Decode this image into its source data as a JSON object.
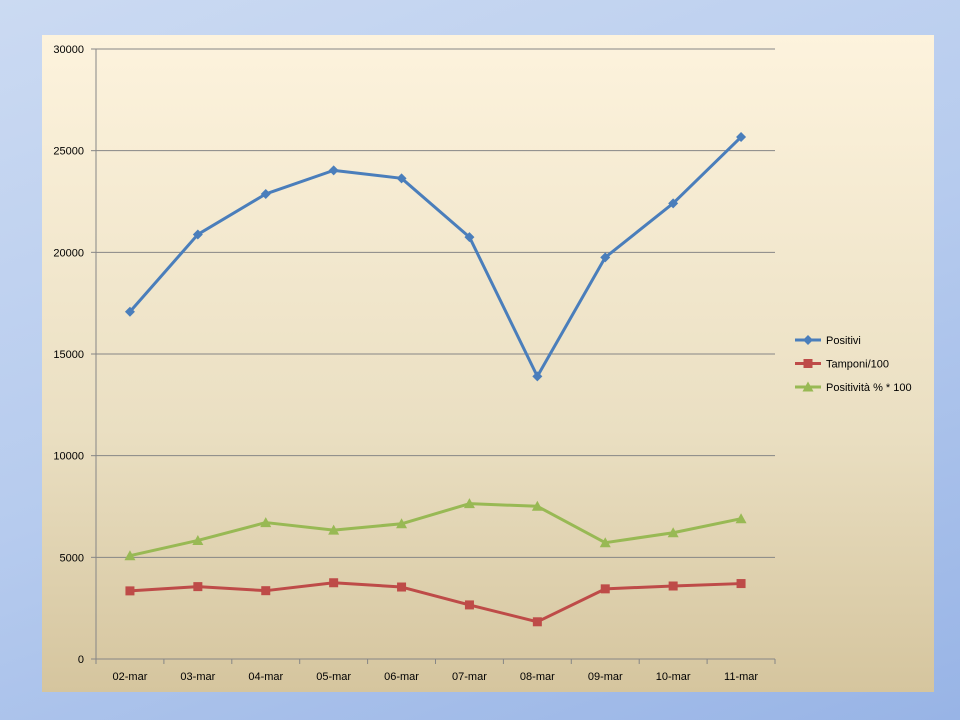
{
  "chart_data": {
    "type": "line",
    "categories": [
      "02-mar",
      "03-mar",
      "04-mar",
      "05-mar",
      "06-mar",
      "07-mar",
      "08-mar",
      "09-mar",
      "10-mar",
      "11-mar"
    ],
    "series": [
      {
        "name": "Positivi",
        "color": "#4a7ebb",
        "marker": "diamond",
        "values": [
          17080,
          20880,
          22870,
          24030,
          23640,
          20750,
          13900,
          19750,
          22410,
          25670
        ]
      },
      {
        "name": "Tamponi/100",
        "color": "#be4b48",
        "marker": "square",
        "values": [
          3350,
          3560,
          3360,
          3750,
          3540,
          2660,
          1830,
          3450,
          3590,
          3710
        ]
      },
      {
        "name": "Positività % * 100",
        "color": "#98b954",
        "marker": "triangle",
        "values": [
          5080,
          5830,
          6710,
          6340,
          6650,
          7640,
          7510,
          5720,
          6210,
          6900
        ]
      }
    ],
    "ylim": [
      0,
      30000
    ],
    "yticks": [
      0,
      5000,
      10000,
      15000,
      20000,
      25000,
      30000
    ],
    "grid": "horizontal",
    "legend": "right"
  }
}
